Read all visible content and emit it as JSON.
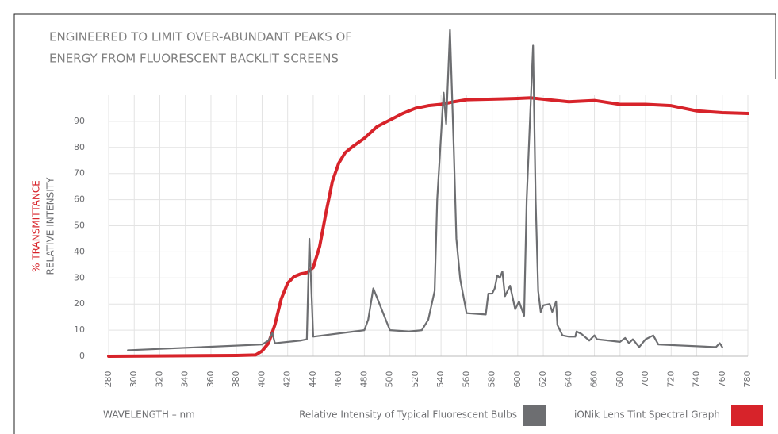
{
  "chart_data": {
    "type": "line",
    "title": [
      "ENGINEERED TO LIMIT OVER-ABUNDANT PEAKS OF",
      "ENERGY FROM FLUORESCENT BACKLIT SCREENS"
    ],
    "xlabel": "WAVELENGTH – nm",
    "ylabel": "RELATIVE INTENSITY",
    "ylabel_secondary": "% TRANSMITTANCE",
    "xlim": [
      280,
      780
    ],
    "xticks": [
      280,
      300,
      320,
      340,
      360,
      380,
      400,
      420,
      440,
      460,
      480,
      500,
      520,
      540,
      560,
      580,
      600,
      620,
      640,
      660,
      680,
      700,
      720,
      740,
      760,
      780
    ],
    "ylim": [
      0,
      100
    ],
    "yticks": [
      0,
      10,
      20,
      30,
      40,
      50,
      60,
      70,
      80,
      90
    ],
    "grid": true,
    "legend": "bottom",
    "series": [
      {
        "name": "Relative Intensity of Typical Fluorescent Bulbs",
        "color": "#6d6e71",
        "x": [
          295,
          400,
          405,
          408,
          410,
          430,
          435,
          437,
          440,
          480,
          483,
          487,
          500,
          515,
          525,
          530,
          535,
          537,
          542,
          544,
          547,
          550,
          552,
          555,
          560,
          575,
          577,
          580,
          582,
          584,
          586,
          588,
          590,
          594,
          598,
          601,
          605,
          607,
          612,
          614,
          616,
          618,
          620,
          625,
          627,
          630,
          631,
          635,
          640,
          645,
          646,
          650,
          656,
          660,
          662,
          680,
          684,
          687,
          690,
          695,
          700,
          706,
          710,
          755,
          758,
          760
        ],
        "values": [
          2.3,
          4.5,
          6,
          9,
          5,
          6,
          6.5,
          45,
          7.5,
          10,
          14,
          26,
          10,
          9.5,
          10,
          14,
          25,
          60,
          101,
          89,
          125,
          79,
          45,
          29.5,
          16.5,
          16,
          24,
          24,
          26,
          31,
          30,
          32.5,
          23,
          27,
          18,
          21,
          15.5,
          60,
          119,
          60,
          25,
          17,
          19.5,
          20,
          17,
          21,
          12,
          8,
          7.5,
          7.5,
          9.5,
          8.5,
          6,
          8,
          6.5,
          5.5,
          7,
          5,
          6.5,
          3.5,
          6.5,
          8,
          4.5,
          3.5,
          5,
          3.5
        ]
      },
      {
        "name": "iONik Lens Tint Spectral Graph",
        "color": "#d7232a",
        "x": [
          280,
          380,
          395,
          400,
          405,
          410,
          415,
          420,
          425,
          430,
          435,
          440,
          445,
          450,
          455,
          460,
          465,
          470,
          480,
          490,
          500,
          510,
          520,
          530,
          540,
          550,
          560,
          580,
          600,
          610,
          620,
          640,
          660,
          680,
          700,
          720,
          740,
          760,
          780
        ],
        "values": [
          0,
          0.3,
          0.5,
          2,
          5,
          12,
          22,
          28,
          30.5,
          31.5,
          32,
          34,
          42,
          55,
          67,
          74,
          78,
          80,
          83.5,
          88,
          90.5,
          93,
          95,
          96,
          96.5,
          97.5,
          98.3,
          98.5,
          98.8,
          99,
          98.5,
          97.5,
          98,
          96.5,
          96.5,
          96,
          94,
          93.3,
          93
        ]
      }
    ]
  }
}
